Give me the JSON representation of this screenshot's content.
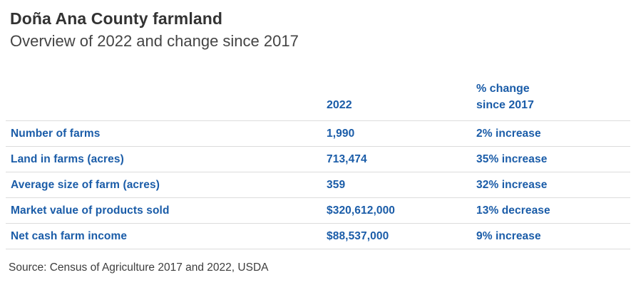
{
  "header": {
    "title": "Doña Ana County farmland",
    "subtitle": "Overview of 2022 and change since 2017"
  },
  "table": {
    "columns": {
      "year": "2022",
      "change_line1": "% change",
      "change_line2": "since 2017"
    },
    "rows": [
      {
        "label": "Number of farms",
        "value": "1,990",
        "change": "2% increase"
      },
      {
        "label": "Land in farms (acres)",
        "value": "713,474",
        "change": "35% increase"
      },
      {
        "label": "Average size of farm (acres)",
        "value": "359",
        "change": "32% increase"
      },
      {
        "label": "Market value of products sold",
        "value": "$320,612,000",
        "change": "13% decrease"
      },
      {
        "label": "Net cash farm income",
        "value": "$88,537,000",
        "change": "9% increase"
      }
    ]
  },
  "footer": {
    "source": "Source: Census of Agriculture 2017 and 2022, USDA"
  },
  "colors": {
    "accent_blue": "#1a5ca8",
    "divider_gray": "#dcdcdc",
    "title_text": "#333333",
    "subtitle_text": "#444444",
    "source_text": "#3d3d3d",
    "background": "#ffffff"
  },
  "chart_data": {
    "type": "table",
    "title": "Doña Ana County farmland",
    "subtitle": "Overview of 2022 and change since 2017",
    "columns": [
      "",
      "2022",
      "% change since 2017"
    ],
    "rows": [
      [
        "Number of farms",
        "1,990",
        "2% increase"
      ],
      [
        "Land in farms (acres)",
        "713,474",
        "35% increase"
      ],
      [
        "Average size of farm (acres)",
        "359",
        "32% increase"
      ],
      [
        "Market value of products sold",
        "$320,612,000",
        "13% decrease"
      ],
      [
        "Net cash farm income",
        "$88,537,000",
        "9% increase"
      ]
    ],
    "source": "Source: Census of Agriculture 2017 and 2022, USDA",
    "layout": {
      "grid": "horizontal-dividers-only",
      "header_color": "#1a5ca8",
      "value_color": "#1a5ca8"
    }
  }
}
